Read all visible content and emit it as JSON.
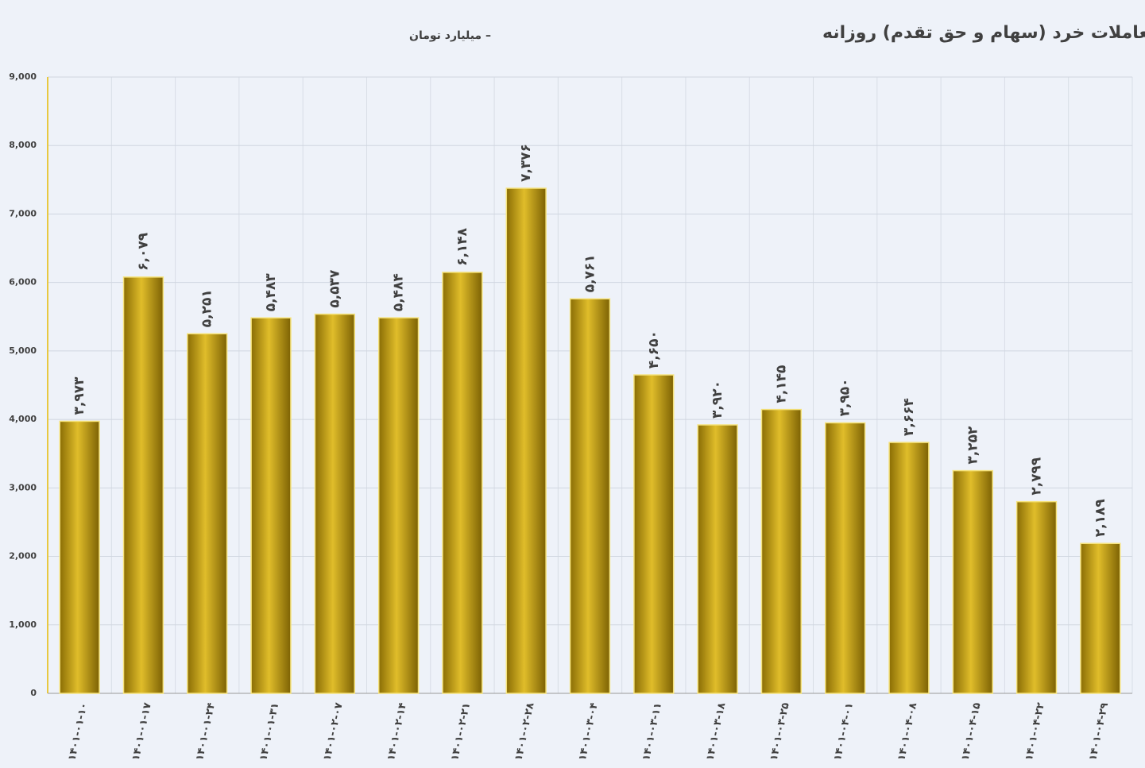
{
  "chart_data": {
    "type": "bar",
    "title": "میانگین ارزش معاملات خرد (سهام و حق تقدم) روزانه",
    "subtitle": "– میلیارد تومان",
    "categories": [
      "۱۴۰۱-۰۱-۱۰",
      "۱۴۰۱-۰۱-۱۷",
      "۱۴۰۱-۰۱-۲۴",
      "۱۴۰۱-۰۱-۳۱",
      "۱۴۰۱-۰۲-۰۷",
      "۱۴۰۱-۰۲-۱۴",
      "۱۴۰۱-۰۲-۲۱",
      "۱۴۰۱-۰۲-۲۸",
      "۱۴۰۱-۰۳-۰۴",
      "۱۴۰۱-۰۳-۱۱",
      "۱۴۰۱-۰۳-۱۸",
      "۱۴۰۱-۰۳-۲۵",
      "۱۴۰۱-۰۴-۰۱",
      "۱۴۰۱-۰۴-۰۸",
      "۱۴۰۱-۰۴-۱۵",
      "۱۴۰۱-۰۴-۲۲",
      "۱۴۰۱-۰۴-۲۹"
    ],
    "values": [
      3973,
      6079,
      5251,
      5483,
      5537,
      5484,
      6148,
      7376,
      5761,
      4650,
      3920,
      4145,
      3950,
      3664,
      3252,
      2799,
      2189
    ],
    "value_labels": [
      "۳,۹۷۳",
      "۶,۰۷۹",
      "۵,۲۵۱",
      "۵,۴۸۳",
      "۵,۵۳۷",
      "۵,۴۸۴",
      "۶,۱۴۸",
      "۷,۳۷۶",
      "۵,۷۶۱",
      "۴,۶۵۰",
      "۳,۹۲۰",
      "۴,۱۴۵",
      "۳,۹۵۰",
      "۳,۶۶۴",
      "۳,۲۵۲",
      "۲,۷۹۹",
      "۲,۱۸۹"
    ],
    "color": "#c9a314",
    "ylim": [
      0,
      9000
    ],
    "yticks": [
      0,
      {
        "value": 1000,
        "label": "1,000"
      },
      {
        "value": 2000,
        "label": "2,000"
      },
      {
        "value": 3000,
        "label": "3,000"
      },
      {
        "value": 4000,
        "label": "4,000"
      },
      {
        "value": 5000,
        "label": "5,000"
      },
      {
        "value": 6000,
        "label": "6,000"
      },
      {
        "value": 7000,
        "label": "7,000"
      },
      {
        "value": 8000,
        "label": "8,000"
      },
      {
        "value": 9000,
        "label": "9,000"
      }
    ],
    "grid": true
  }
}
